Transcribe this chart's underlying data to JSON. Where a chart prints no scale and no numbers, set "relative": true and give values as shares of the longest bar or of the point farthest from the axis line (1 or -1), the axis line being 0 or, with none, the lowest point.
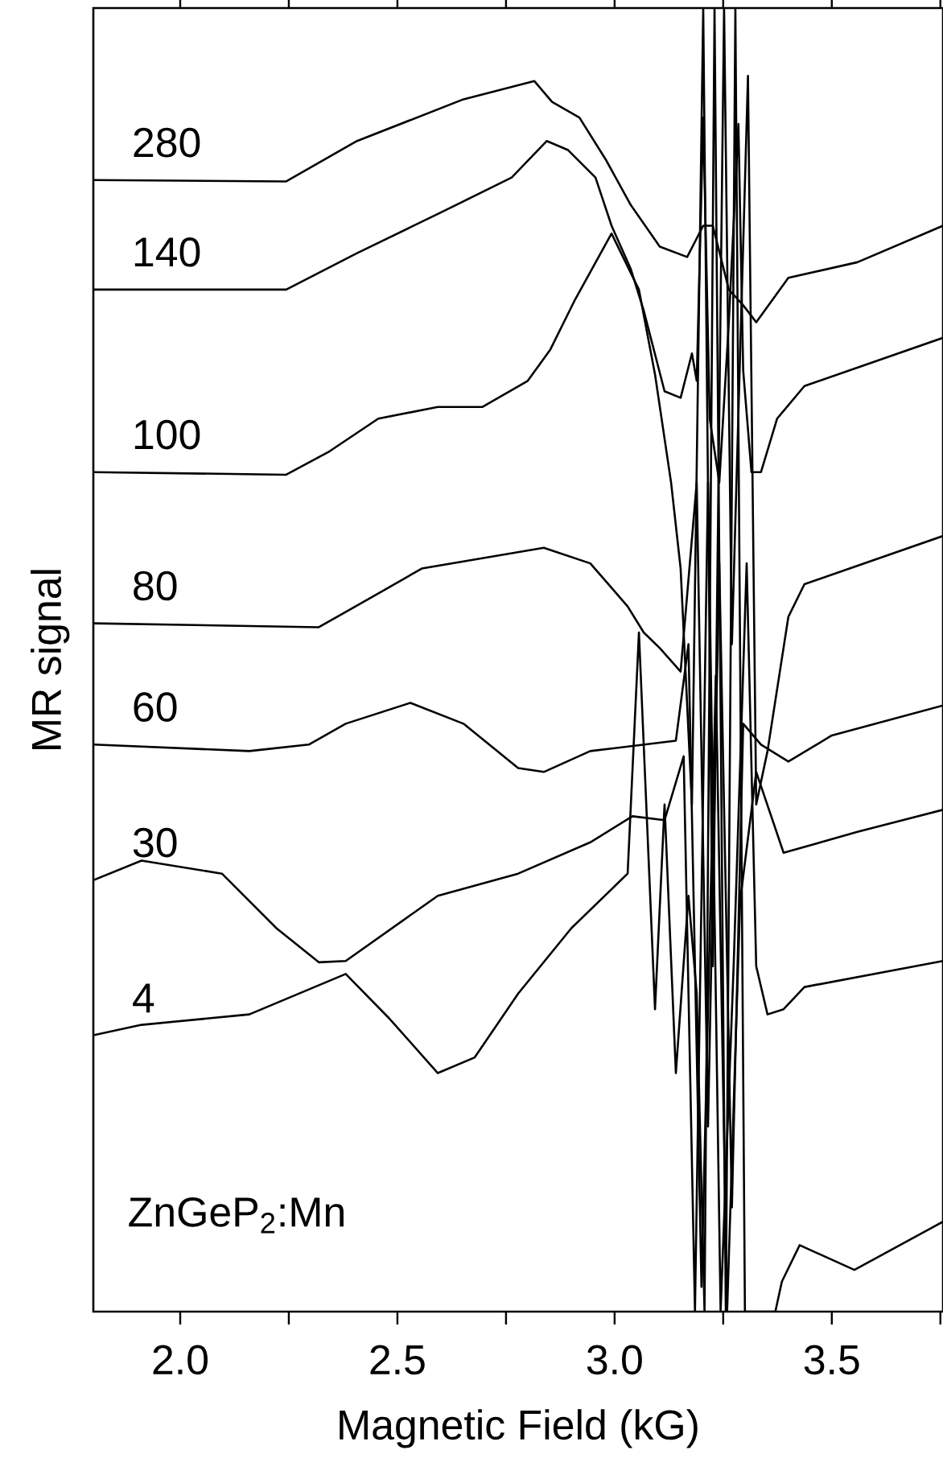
{
  "chart_data": {
    "type": "line",
    "relative": true,
    "xlabel": "Magnetic Field (kG)",
    "ylabel": "MR signal",
    "xlim": [
      1.8,
      3.756
    ],
    "xticks": [
      {
        "value": 2,
        "label": "2.0"
      },
      {
        "value": 2.25,
        "label": null
      },
      {
        "value": 2.5,
        "label": "2.5"
      },
      {
        "value": 2.75,
        "label": null
      },
      {
        "value": 3,
        "label": "3.0"
      },
      {
        "value": 3.25,
        "label": null
      },
      {
        "value": 3.5,
        "label": "3.5"
      },
      {
        "value": 3.75,
        "label": null
      }
    ],
    "line_style": "solid",
    "annotations": [
      "ZnGeP$_{2}$:Mn"
    ],
    "series": [
      {
        "name": "280",
        "color": "#000000",
        "x": [
          1.8,
          2.244,
          2.407,
          2.652,
          2.815,
          2.856,
          2.919,
          2.981,
          3.037,
          3.104,
          3.167,
          3.204,
          3.226,
          3.263,
          3.296,
          3.326,
          3.4,
          3.559,
          3.756
        ],
        "values": [
          0.868,
          0.867,
          0.898,
          0.93,
          0.944,
          0.928,
          0.916,
          0.883,
          0.849,
          0.817,
          0.809,
          0.833,
          0.833,
          0.784,
          0.772,
          0.759,
          0.793,
          0.805,
          0.833
        ]
      },
      {
        "name": "140",
        "color": "#000000",
        "x": [
          1.8,
          2.244,
          2.407,
          2.593,
          2.763,
          2.844,
          2.893,
          2.956,
          2.993,
          3.037,
          3.067,
          3.115,
          3.152,
          3.178,
          3.189,
          3.204,
          3.219,
          3.241,
          3.263,
          3.285,
          3.296,
          3.315,
          3.337,
          3.374,
          3.437,
          3.756
        ],
        "values": [
          0.784,
          0.784,
          0.812,
          0.842,
          0.87,
          0.898,
          0.891,
          0.87,
          0.833,
          0.8,
          0.768,
          0.706,
          0.701,
          0.735,
          0.714,
          0.916,
          0.685,
          0.636,
          0.759,
          0.911,
          0.722,
          0.644,
          0.644,
          0.685,
          0.71,
          0.747
        ]
      },
      {
        "name": "100",
        "color": "#000000",
        "x": [
          1.8,
          2.244,
          2.344,
          2.456,
          2.593,
          2.696,
          2.8,
          2.852,
          2.907,
          2.993,
          3.056,
          3.093,
          3.13,
          3.152,
          3.178,
          3.204,
          3.226,
          3.252,
          3.27,
          3.307,
          3.326,
          3.352,
          3.4,
          3.437,
          3.756
        ],
        "values": [
          0.644,
          0.642,
          0.66,
          0.685,
          0.694,
          0.694,
          0.714,
          0.738,
          0.775,
          0.827,
          0.784,
          0.719,
          0.636,
          0.57,
          0.389,
          1,
          0.265,
          1,
          0.512,
          0.948,
          0.389,
          0.43,
          0.533,
          0.558,
          0.595
        ]
      },
      {
        "name": "80",
        "color": "#000000",
        "x": [
          1.8,
          2.319,
          2.467,
          2.556,
          2.837,
          2.944,
          3.03,
          3.067,
          3.104,
          3.152,
          3.189,
          3.215,
          3.241,
          3.27,
          3.296,
          3.337,
          3.4,
          3.5,
          3.756
        ],
        "values": [
          0.528,
          0.525,
          0.553,
          0.57,
          0.586,
          0.574,
          0.541,
          0.521,
          0.509,
          0.491,
          0.636,
          0.142,
          0.574,
          0.08,
          0.451,
          0.435,
          0.422,
          0.442,
          0.465
        ]
      },
      {
        "name": "60",
        "color": "#000000",
        "x": [
          1.8,
          2.159,
          2.296,
          2.381,
          2.53,
          2.652,
          2.778,
          2.837,
          2.944,
          3.141,
          3.17,
          3.2,
          3.233,
          3.259,
          3.289,
          3.326,
          3.389,
          3.559,
          3.756
        ],
        "values": [
          0.435,
          0.43,
          0.435,
          0.451,
          0.467,
          0.451,
          0.417,
          0.414,
          0.43,
          0.438,
          0.512,
          0.019,
          0.488,
          0,
          0.315,
          0.414,
          0.352,
          0.368,
          0.385
        ]
      },
      {
        "name": "30",
        "color": "#000000",
        "x": [
          1.8,
          1.911,
          2.096,
          2.222,
          2.319,
          2.381,
          2.593,
          2.778,
          2.944,
          3.041,
          3.115,
          3.159,
          3.185,
          3.215,
          3.244,
          3.274,
          3.304,
          3.326,
          3.352,
          3.389,
          3.437,
          3.756
        ],
        "values": [
          0.331,
          0.346,
          0.336,
          0.294,
          0.268,
          0.269,
          0.319,
          0.336,
          0.36,
          0.38,
          0.377,
          0.426,
          0,
          0.636,
          0,
          0.265,
          0.574,
          0.265,
          0.228,
          0.232,
          0.249,
          0.269
        ]
      },
      {
        "name": "4",
        "color": "#000000",
        "x": [
          1.8,
          1.911,
          2.159,
          2.381,
          2.481,
          2.593,
          2.678,
          2.778,
          2.9,
          3.03,
          3.056,
          3.093,
          3.115,
          3.141,
          3.17,
          3.189,
          3.207,
          3.23,
          3.256,
          3.278,
          3.3,
          3.37,
          3.385,
          3.426,
          3.552,
          3.756
        ],
        "values": [
          0.212,
          0.22,
          0.228,
          0.259,
          0.225,
          0.183,
          0.195,
          0.244,
          0.294,
          0.336,
          0.521,
          0.232,
          0.389,
          0.183,
          0.319,
          0.244,
          0,
          1,
          0,
          1,
          0,
          0,
          0.023,
          0.051,
          0.032,
          0.069
        ]
      }
    ]
  }
}
